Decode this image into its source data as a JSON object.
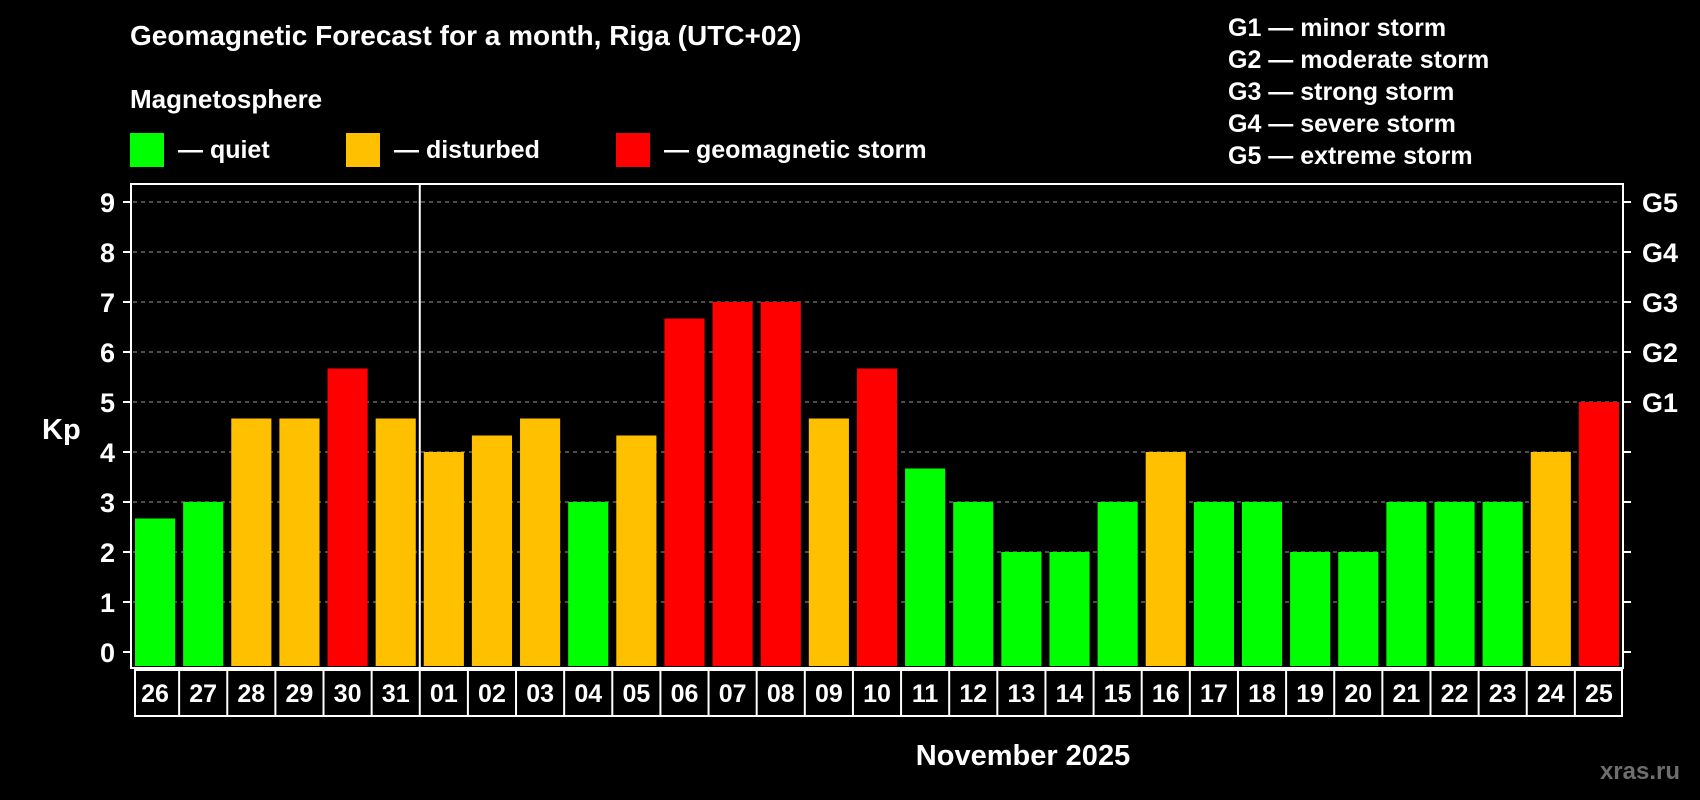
{
  "title": "Geomagnetic Forecast for a month, Riga (UTC+02)",
  "subtitle": "Magnetosphere",
  "legend": [
    {
      "label": "— quiet",
      "color": "#00ff00"
    },
    {
      "label": "— disturbed",
      "color": "#ffc000"
    },
    {
      "label": "— geomagnetic storm",
      "color": "#ff0000"
    }
  ],
  "storm_legend": [
    "G1 — minor storm",
    "G2 — moderate storm",
    "G3 — strong storm",
    "G4 — severe storm",
    "G5 — extreme storm"
  ],
  "watermark": "xras.ru",
  "chart_data": {
    "type": "bar",
    "title": "Geomagnetic Forecast for a month, Riga (UTC+02)",
    "xlabel": "November 2025",
    "ylabel": "Kp",
    "ylim": [
      0,
      9
    ],
    "yticks": [
      "0",
      "1",
      "2",
      "3",
      "4",
      "5",
      "6",
      "7",
      "8",
      "9"
    ],
    "right_axis": [
      {
        "level": 5,
        "label": "G1"
      },
      {
        "level": 6,
        "label": "G2"
      },
      {
        "level": 7,
        "label": "G3"
      },
      {
        "level": 8,
        "label": "G4"
      },
      {
        "level": 9,
        "label": "G5"
      }
    ],
    "month_separator_after": "31",
    "categories": [
      "26",
      "27",
      "28",
      "29",
      "30",
      "31",
      "01",
      "02",
      "03",
      "04",
      "05",
      "06",
      "07",
      "08",
      "09",
      "10",
      "11",
      "12",
      "13",
      "14",
      "15",
      "16",
      "17",
      "18",
      "19",
      "20",
      "21",
      "22",
      "23",
      "24",
      "25"
    ],
    "values": [
      2.67,
      3,
      4.67,
      4.67,
      5.67,
      4.67,
      4,
      4.33,
      4.67,
      3,
      4.33,
      6.67,
      7,
      7,
      4.67,
      5.67,
      3.67,
      3,
      2,
      2,
      3,
      4,
      3,
      3,
      2,
      2,
      3,
      3,
      3,
      4,
      5
    ],
    "levels": [
      "quiet",
      "quiet",
      "disturbed",
      "disturbed",
      "storm",
      "disturbed",
      "disturbed",
      "disturbed",
      "disturbed",
      "quiet",
      "disturbed",
      "storm",
      "storm",
      "storm",
      "disturbed",
      "storm",
      "quiet",
      "quiet",
      "quiet",
      "quiet",
      "quiet",
      "disturbed",
      "quiet",
      "quiet",
      "quiet",
      "quiet",
      "quiet",
      "quiet",
      "quiet",
      "disturbed",
      "storm"
    ],
    "colors": {
      "quiet": "#00ff00",
      "disturbed": "#ffc000",
      "storm": "#ff0000"
    },
    "grid": true
  }
}
